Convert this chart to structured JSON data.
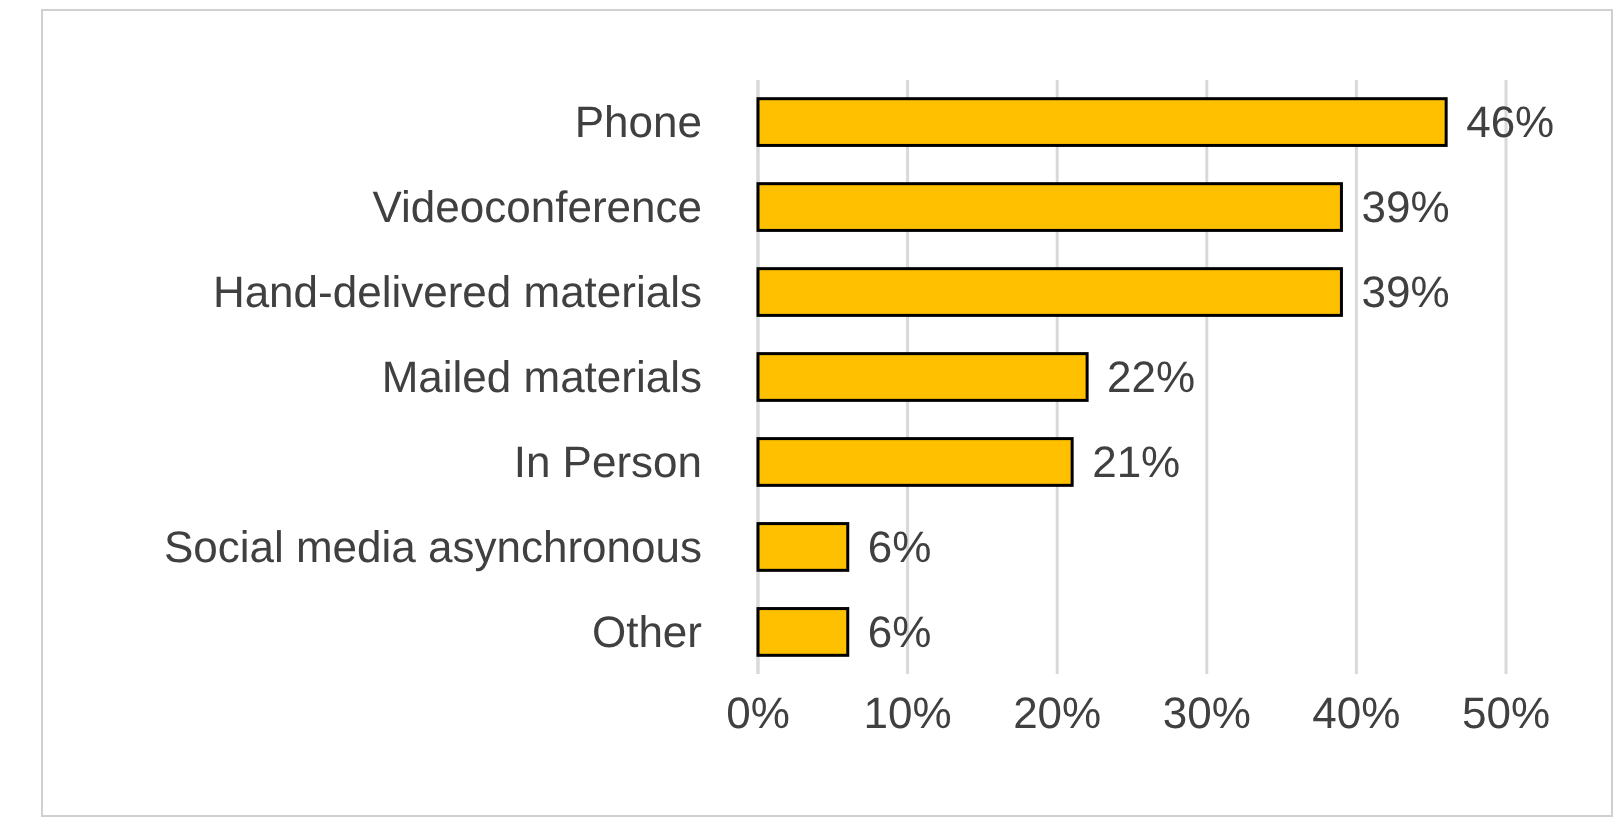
{
  "chart_data": {
    "type": "bar",
    "orientation": "horizontal",
    "categories": [
      "Phone",
      "Videoconference",
      "Hand-delivered materials",
      "Mailed materials",
      "In Person",
      "Social media asynchronous",
      "Other"
    ],
    "values": [
      46,
      39,
      39,
      22,
      21,
      6,
      6
    ],
    "value_labels": [
      "46%",
      "39%",
      "39%",
      "22%",
      "21%",
      "6%",
      "6%"
    ],
    "color": "#ffc000",
    "xlim": [
      0,
      50
    ],
    "xticks": [
      {
        "value": 0,
        "label": "0%"
      },
      {
        "value": 10,
        "label": "10%"
      },
      {
        "value": 20,
        "label": "20%"
      },
      {
        "value": 30,
        "label": "30%"
      },
      {
        "value": 40,
        "label": "40%"
      },
      {
        "value": 50,
        "label": "50%"
      }
    ],
    "grid": "x"
  }
}
